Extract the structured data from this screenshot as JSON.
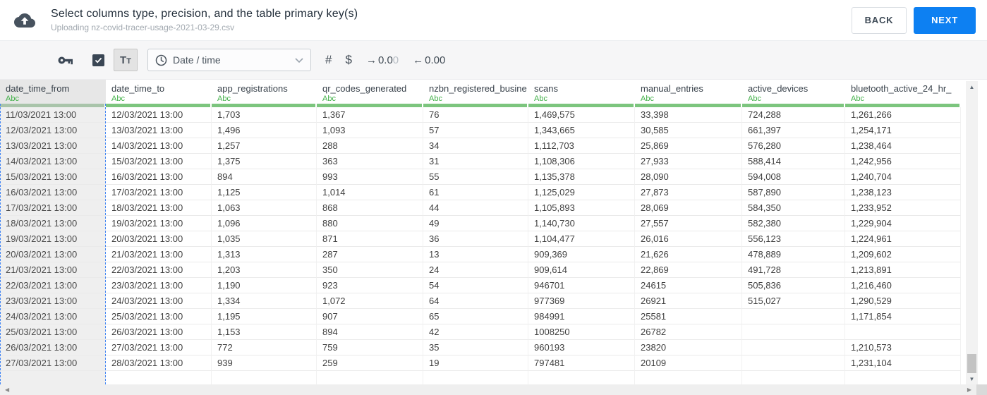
{
  "header": {
    "title": "Select columns type, precision, and the table primary key(s)",
    "subtitle": "Uploading nz-covid-tracer-usage-2021-03-29.csv",
    "back_label": "BACK",
    "next_label": "NEXT"
  },
  "toolbar": {
    "checkbox_checked": true,
    "text_type_label": "Tt",
    "type_select": {
      "value": "Date / time"
    },
    "number_label": "#",
    "currency_label": "$",
    "add_decimal": {
      "glyph": "→",
      "label": "0.0",
      "label_muted": "0"
    },
    "remove_decimal": {
      "glyph": "←",
      "label": "0.00"
    }
  },
  "table": {
    "type_label": "Abc",
    "columns": [
      {
        "name": "date_time_from",
        "selected": true
      },
      {
        "name": "date_time_to",
        "selected": false
      },
      {
        "name": "app_registrations",
        "selected": false
      },
      {
        "name": "qr_codes_generated",
        "selected": false
      },
      {
        "name": "nzbn_registered_busine",
        "selected": false
      },
      {
        "name": "scans",
        "selected": false
      },
      {
        "name": "manual_entries",
        "selected": false
      },
      {
        "name": "active_devices",
        "selected": false
      },
      {
        "name": "bluetooth_active_24_hr_",
        "selected": false
      }
    ],
    "rows": [
      [
        "11/03/2021 13:00",
        "12/03/2021 13:00",
        "1,703",
        "1,367",
        "76",
        "1,469,575",
        "33,398",
        "724,288",
        "1,261,266"
      ],
      [
        "12/03/2021 13:00",
        "13/03/2021 13:00",
        "1,496",
        "1,093",
        "57",
        "1,343,665",
        "30,585",
        "661,397",
        "1,254,171"
      ],
      [
        "13/03/2021 13:00",
        "14/03/2021 13:00",
        "1,257",
        "288",
        "34",
        "1,112,703",
        "25,869",
        "576,280",
        "1,238,464"
      ],
      [
        "14/03/2021 13:00",
        "15/03/2021 13:00",
        "1,375",
        "363",
        "31",
        "1,108,306",
        "27,933",
        "588,414",
        "1,242,956"
      ],
      [
        "15/03/2021 13:00",
        "16/03/2021 13:00",
        "894",
        "993",
        "55",
        "1,135,378",
        "28,090",
        "594,008",
        "1,240,704"
      ],
      [
        "16/03/2021 13:00",
        "17/03/2021 13:00",
        "1,125",
        "1,014",
        "61",
        "1,125,029",
        "27,873",
        "587,890",
        "1,238,123"
      ],
      [
        "17/03/2021 13:00",
        "18/03/2021 13:00",
        "1,063",
        "868",
        "44",
        "1,105,893",
        "28,069",
        "584,350",
        "1,233,952"
      ],
      [
        "18/03/2021 13:00",
        "19/03/2021 13:00",
        "1,096",
        "880",
        "49",
        "1,140,730",
        "27,557",
        "582,380",
        "1,229,904"
      ],
      [
        "19/03/2021 13:00",
        "20/03/2021 13:00",
        "1,035",
        "871",
        "36",
        "1,104,477",
        "26,016",
        "556,123",
        "1,224,961"
      ],
      [
        "20/03/2021 13:00",
        "21/03/2021 13:00",
        "1,313",
        "287",
        "13",
        "909,369",
        "21,626",
        "478,889",
        "1,209,602"
      ],
      [
        "21/03/2021 13:00",
        "22/03/2021 13:00",
        "1,203",
        "350",
        "24",
        "909,614",
        "22,869",
        "491,728",
        "1,213,891"
      ],
      [
        "22/03/2021 13:00",
        "23/03/2021 13:00",
        "1,190",
        "923",
        "54",
        "946701",
        "24615",
        "505,836",
        "1,216,460"
      ],
      [
        "23/03/2021 13:00",
        "24/03/2021 13:00",
        "1,334",
        "1,072",
        "64",
        "977369",
        "26921",
        "515,027",
        "1,290,529"
      ],
      [
        "24/03/2021 13:00",
        "25/03/2021 13:00",
        "1,195",
        "907",
        "65",
        "984991",
        "25581",
        "",
        "1,171,854"
      ],
      [
        "25/03/2021 13:00",
        "26/03/2021 13:00",
        "1,153",
        "894",
        "42",
        "1008250",
        "26782",
        "",
        ""
      ],
      [
        "26/03/2021 13:00",
        "27/03/2021 13:00",
        "772",
        "759",
        "35",
        "960193",
        "23820",
        "",
        "1,210,573"
      ],
      [
        "27/03/2021 13:00",
        "28/03/2021 13:00",
        "939",
        "259",
        "19",
        "797481",
        "20109",
        "",
        "1,231,104"
      ]
    ]
  },
  "colors": {
    "accent": "#0d80f2",
    "green_text": "#3faf46",
    "bar_green": "#7cc57e",
    "bar_green_sel": "#a9c4aa",
    "dash_blue": "#4285f4"
  }
}
